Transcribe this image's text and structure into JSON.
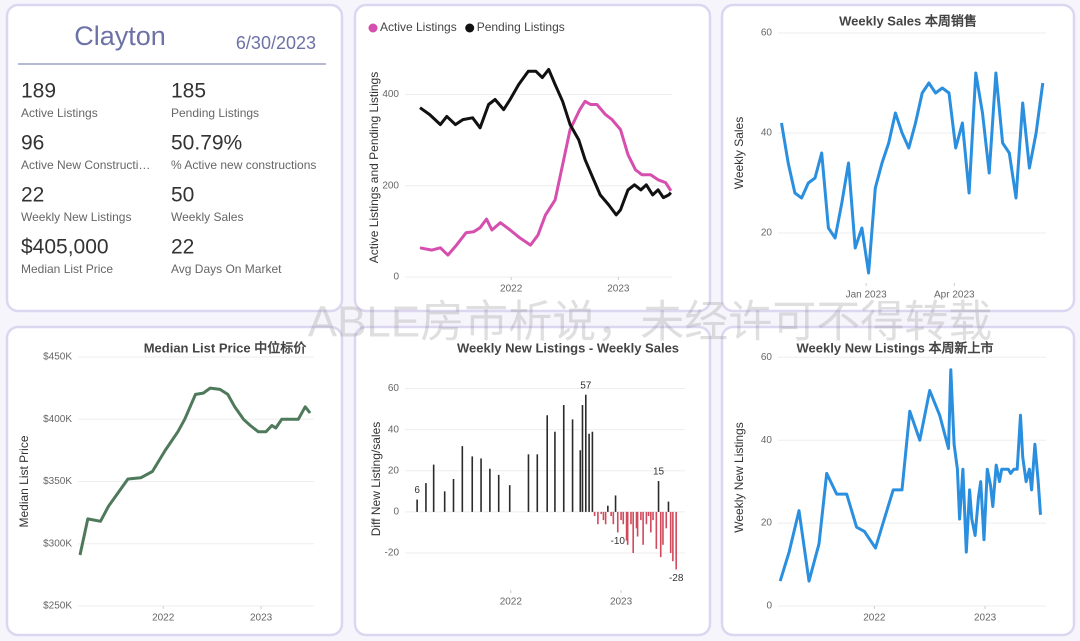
{
  "header": {
    "title": "Clayton",
    "date": "6/30/2023"
  },
  "kpis": [
    {
      "value": "189",
      "label": "Active Listings"
    },
    {
      "value": "185",
      "label": "Pending Listings"
    },
    {
      "value": "96",
      "label": "Active New Constructi…"
    },
    {
      "value": "50.79%",
      "label": "% Active new constructions"
    },
    {
      "value": "22",
      "label": "Weekly New Listings"
    },
    {
      "value": "50",
      "label": "Weekly Sales"
    },
    {
      "value": "$405,000",
      "label": "Median List Price"
    },
    {
      "value": "22",
      "label": "Avg Days On Market"
    }
  ],
  "watermark": "ABLE房市析说，未经许可不得转载",
  "chart_data": [
    {
      "type": "line",
      "y_label": "Active Listings and Pending Listings",
      "legend": "top-left",
      "grid": true,
      "xlim": [
        2021.01,
        2023.5
      ],
      "xticks": [
        2022,
        2023
      ],
      "ylim": [
        0,
        480
      ],
      "yticks": [
        0,
        200,
        400
      ],
      "series": [
        {
          "name": "Active Listings",
          "color": "#d64eae",
          "x": [
            2021.15,
            2021.26,
            2021.34,
            2021.41,
            2021.49,
            2021.58,
            2021.65,
            2021.71,
            2021.77,
            2021.82,
            2021.9,
            2021.99,
            2022.08,
            2022.18,
            2022.25,
            2022.32,
            2022.41,
            2022.48,
            2022.55,
            2022.64,
            2022.69,
            2022.74,
            2022.8,
            2022.88,
            2022.94,
            2023.02,
            2023.09,
            2023.16,
            2023.22,
            2023.3,
            2023.37,
            2023.44,
            2023.49
          ],
          "values": [
            64,
            59,
            64,
            48,
            70,
            97,
            99,
            108,
            127,
            103,
            119,
            103,
            86,
            70,
            92,
            136,
            169,
            246,
            323,
            367,
            385,
            378,
            378,
            356,
            345,
            323,
            268,
            235,
            224,
            224,
            213,
            207,
            189
          ]
        },
        {
          "name": "Pending Listings",
          "color": "#111111",
          "x": [
            2021.15,
            2021.24,
            2021.34,
            2021.4,
            2021.48,
            2021.55,
            2021.64,
            2021.71,
            2021.79,
            2021.85,
            2021.93,
            2021.99,
            2022.07,
            2022.16,
            2022.23,
            2022.29,
            2022.35,
            2022.41,
            2022.48,
            2022.55,
            2022.63,
            2022.69,
            2022.76,
            2022.83,
            2022.91,
            2022.98,
            2023.02,
            2023.09,
            2023.15,
            2023.21,
            2023.26,
            2023.32,
            2023.37,
            2023.42,
            2023.47,
            2023.49
          ],
          "values": [
            371,
            356,
            334,
            352,
            334,
            345,
            349,
            327,
            378,
            389,
            367,
            389,
            422,
            451,
            451,
            437,
            455,
            422,
            385,
            334,
            301,
            257,
            218,
            180,
            158,
            136,
            147,
            191,
            202,
            191,
            202,
            180,
            191,
            174,
            180,
            185
          ]
        }
      ]
    },
    {
      "type": "line",
      "title": "Weekly Sales 本周销售",
      "y_label": "Weekly Sales",
      "grid": true,
      "xlim": [
        2022.75,
        2023.51
      ],
      "xticks": [
        {
          "value": 2023,
          "label": "Jan 2023"
        },
        {
          "value": 2023.25,
          "label": "Apr 2023"
        }
      ],
      "ylim": [
        10,
        62
      ],
      "yticks": [
        20,
        40,
        60
      ],
      "series": [
        {
          "color": "#2b8fdf",
          "x": [
            2022.76,
            2022.779,
            2022.798,
            2022.817,
            2022.836,
            2022.855,
            2022.874,
            2022.893,
            2022.912,
            2022.931,
            2022.95,
            2022.969,
            2022.988,
            2023.007,
            2023.026,
            2023.045,
            2023.064,
            2023.083,
            2023.102,
            2023.121,
            2023.14,
            2023.159,
            2023.178,
            2023.197,
            2023.216,
            2023.235,
            2023.254,
            2023.273,
            2023.292,
            2023.311,
            2023.33,
            2023.349,
            2023.368,
            2023.387,
            2023.406,
            2023.425,
            2023.444,
            2023.463,
            2023.482,
            2023.501
          ],
          "values": [
            42,
            34,
            28,
            27,
            30,
            31,
            36,
            21,
            19,
            26,
            34,
            17,
            21,
            12,
            29,
            34,
            38,
            44,
            40,
            37,
            42,
            48,
            50,
            48,
            49,
            48,
            37,
            42,
            28,
            52,
            44,
            32,
            52,
            38,
            36,
            27,
            46,
            33,
            40,
            50
          ]
        }
      ]
    },
    {
      "type": "line",
      "title": "Median List Price 中位标价",
      "y_label": "Median List Price",
      "grid": true,
      "xlim": [
        2021.13,
        2023.54
      ],
      "xticks": [
        2022,
        2023
      ],
      "ylim": [
        250000,
        450000
      ],
      "yticks": [
        {
          "value": 250000,
          "label": "$250K"
        },
        {
          "value": 300000,
          "label": "$300K"
        },
        {
          "value": 350000,
          "label": "$350K"
        },
        {
          "value": 400000,
          "label": "$400K"
        },
        {
          "value": 450000,
          "label": "$450K"
        }
      ],
      "series": [
        {
          "color": "#4e7a5b",
          "x": [
            2021.15,
            2021.23,
            2021.36,
            2021.44,
            2021.64,
            2021.77,
            2021.89,
            2022.02,
            2022.15,
            2022.22,
            2022.33,
            2022.41,
            2022.48,
            2022.58,
            2022.66,
            2022.73,
            2022.82,
            2022.89,
            2022.97,
            2023.05,
            2023.11,
            2023.15,
            2023.21,
            2023.3,
            2023.38,
            2023.45,
            2023.5
          ],
          "values": [
            291000,
            320000,
            318000,
            330000,
            352000,
            353000,
            358000,
            375000,
            390000,
            400000,
            420000,
            421000,
            425000,
            424000,
            420000,
            410000,
            400000,
            395000,
            390000,
            390000,
            395000,
            393000,
            400000,
            400000,
            400000,
            410000,
            405000
          ]
        }
      ]
    },
    {
      "type": "bar",
      "title": "Weekly New Listings - Weekly Sales",
      "y_label": "Diff New Listing/sales",
      "grid": true,
      "color": "#2b2b2b",
      "negative_color": "#d2495b",
      "xlim": [
        2021.04,
        2023.58
      ],
      "xticks": [
        2022,
        2023
      ],
      "ylim": [
        -38,
        70
      ],
      "yticks": [
        -20,
        0,
        20,
        40,
        60
      ],
      "x": [
        2021.15,
        2021.23,
        2021.3,
        2021.4,
        2021.48,
        2021.56,
        2021.65,
        2021.73,
        2021.81,
        2021.89,
        2021.99,
        2022.16,
        2022.24,
        2022.33,
        2022.4,
        2022.48,
        2022.56,
        2022.63,
        2022.65,
        2022.68,
        2022.71,
        2022.74,
        2022.76,
        2022.79,
        2022.82,
        2022.84,
        2022.86,
        2022.88,
        2022.91,
        2022.93,
        2022.95,
        2022.97,
        2023.0,
        2023.02,
        2023.05,
        2023.06,
        2023.09,
        2023.11,
        2023.14,
        2023.15,
        2023.18,
        2023.2,
        2023.23,
        2023.25,
        2023.27,
        2023.29,
        2023.32,
        2023.34,
        2023.36,
        2023.38,
        2023.41,
        2023.43,
        2023.45,
        2023.47,
        2023.5
      ],
      "values": [
        6,
        14,
        23,
        10,
        16,
        32,
        27,
        26,
        21,
        18,
        13,
        28,
        28,
        47,
        39,
        52,
        45,
        30,
        52,
        57,
        38,
        39,
        -2,
        -6,
        -1,
        -4,
        -6,
        3,
        -2,
        -6,
        8,
        -10,
        -4,
        -6,
        -14,
        -16,
        -6,
        -20,
        -8,
        -12,
        -4,
        -16,
        -6,
        -2,
        -10,
        -4,
        -18,
        15,
        -22,
        -16,
        -8,
        5,
        -20,
        -24,
        -28
      ],
      "value_labels": [
        "6",
        null,
        null,
        null,
        null,
        null,
        null,
        null,
        null,
        null,
        null,
        null,
        null,
        null,
        null,
        null,
        null,
        null,
        null,
        "57",
        null,
        null,
        null,
        null,
        null,
        null,
        null,
        null,
        null,
        null,
        null,
        "-10",
        null,
        null,
        null,
        null,
        null,
        null,
        null,
        null,
        null,
        null,
        null,
        null,
        null,
        null,
        null,
        "15",
        null,
        null,
        null,
        null,
        null,
        null,
        "-28"
      ]
    },
    {
      "type": "line",
      "title": "Weekly New Listings 本周新上市",
      "y_label": "Weekly New Listings",
      "grid": true,
      "xlim": [
        2021.13,
        2023.55
      ],
      "xticks": [
        2022,
        2023
      ],
      "ylim": [
        0,
        62
      ],
      "yticks": [
        0,
        20,
        40,
        60
      ],
      "series": [
        {
          "color": "#2b8fdf",
          "x": [
            2021.15,
            2021.23,
            2021.32,
            2021.41,
            2021.5,
            2021.57,
            2021.66,
            2021.75,
            2021.84,
            2021.91,
            2022.01,
            2022.09,
            2022.17,
            2022.25,
            2022.32,
            2022.41,
            2022.5,
            2022.59,
            2022.67,
            2022.69,
            2022.72,
            2022.75,
            2022.77,
            2022.8,
            2022.83,
            2022.86,
            2022.88,
            2022.91,
            2022.94,
            2022.96,
            2022.99,
            2023.02,
            2023.05,
            2023.07,
            2023.1,
            2023.13,
            2023.15,
            2023.18,
            2023.21,
            2023.23,
            2023.26,
            2023.29,
            2023.32,
            2023.34,
            2023.37,
            2023.4,
            2023.42,
            2023.45,
            2023.48,
            2023.5
          ],
          "values": [
            6,
            13,
            23,
            6,
            15,
            32,
            27,
            27,
            19,
            18,
            14,
            21,
            28,
            28,
            47,
            40,
            52,
            46,
            38,
            57,
            39,
            33,
            21,
            33,
            13,
            28,
            21,
            17,
            26,
            30,
            16,
            33,
            29,
            24,
            34,
            30,
            33,
            33,
            33,
            32,
            33,
            33,
            46,
            36,
            30,
            33,
            28,
            39,
            30,
            22
          ]
        }
      ]
    }
  ]
}
